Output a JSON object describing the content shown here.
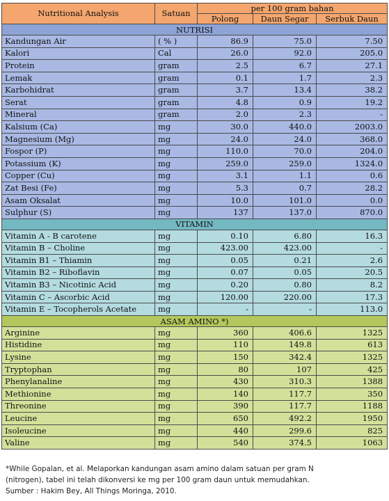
{
  "header": {
    "col_analysis": "Nutritional Analysis",
    "col_unit": "Satuan",
    "group": "per 100 gram bahan",
    "col_a": "Polong",
    "col_b": "Daun Segar",
    "col_c": "Serbuk Daun"
  },
  "sections": {
    "nutrisi": {
      "title": "NUTRISI",
      "rows": [
        [
          "Kandungan Air",
          "( % )",
          "86.9",
          "75.0",
          "7.50"
        ],
        [
          "Kalori",
          "Cal",
          "26.0",
          "92.0",
          "205.0"
        ],
        [
          "Protein",
          "gram",
          "2.5",
          "6.7",
          "27.1"
        ],
        [
          "Lemak",
          "gram",
          "0.1",
          "1.7",
          "2.3"
        ],
        [
          "Karbohidrat",
          "gram",
          "3.7",
          "13.4",
          "38.2"
        ],
        [
          "Serat",
          "gram",
          "4.8",
          "0.9",
          "19.2"
        ],
        [
          "Mineral",
          "gram",
          "2.0",
          "2.3",
          "-"
        ],
        [
          "Kalsium (Ca)",
          "mg",
          "30.0",
          "440.0",
          "2003.0"
        ],
        [
          "Magnesium (Mg)",
          "mg",
          "24.0",
          "24.0",
          "368.0"
        ],
        [
          "Fospor (P)",
          "mg",
          "110.0",
          "70.0",
          "204.0"
        ],
        [
          "Potassium (K)",
          "mg",
          "259.0",
          "259.0",
          "1324.0"
        ],
        [
          "Copper (Cu)",
          "mg",
          "3.1",
          "1.1",
          "0.6"
        ],
        [
          "Zat Besi (Fe)",
          "mg",
          "5.3",
          "0.7",
          "28.2"
        ],
        [
          "Asam Oksalat",
          "mg",
          "10.0",
          "101.0",
          "0.0"
        ],
        [
          "Sulphur (S)",
          "mg",
          "137",
          "137.0",
          "870.0"
        ]
      ]
    },
    "vitamin": {
      "title": "VITAMIN",
      "rows": [
        [
          "Vitamin A - B carotene",
          "mg",
          "0.10",
          "6.80",
          "16.3"
        ],
        [
          "Vitamin B – Choline",
          "mg",
          "423.00",
          "423.00",
          "-"
        ],
        [
          "Vitamin B1 – Thiamin",
          "mg",
          "0.05",
          "0.21",
          "2.6"
        ],
        [
          "Vitamin B2 – Riboflavin",
          "mg",
          "0.07",
          "0.05",
          "20.5"
        ],
        [
          "Vitamin B3 – Nicotinic Acid",
          "mg",
          "0.20",
          "0.80",
          "8.2"
        ],
        [
          "Vitamin C – Ascorbic Acid",
          "mg",
          "120.00",
          "220.00",
          "17.3"
        ],
        [
          "Vitamin E – Tocopherols Acetate",
          "mg",
          "-",
          "-",
          "113.0"
        ]
      ]
    },
    "amino": {
      "title": "ASAM AMINO *)",
      "rows": [
        [
          "Arginine",
          "mg",
          "360",
          "406.6",
          "1325"
        ],
        [
          "Histidine",
          "mg",
          "110",
          "149.8",
          "613"
        ],
        [
          "Lysine",
          "mg",
          "150",
          "342.4",
          "1325"
        ],
        [
          "Tryptophan",
          "mg",
          "80",
          "107",
          "425"
        ],
        [
          "Phenylanaline",
          "mg",
          "430",
          "310.3",
          "1388"
        ],
        [
          "Methionine",
          "mg",
          "140",
          "117.7",
          "350"
        ],
        [
          "Threonine",
          "mg",
          "390",
          "117.7",
          "1188"
        ],
        [
          "Leucine",
          "mg",
          "650",
          "492.2",
          "1950"
        ],
        [
          "Isoleucine",
          "mg",
          "440",
          "299.6",
          "825"
        ],
        [
          "Valine",
          "mg",
          "540",
          "374.5",
          "1063"
        ]
      ]
    }
  },
  "footnote": {
    "line1": "*While Gopalan, et al. Melaporkan kandungan asam amino dalam satuan per gram N",
    "line2": "(nitrogen), tabel ini telah dikonversi  ke mg per 100 gram daun untuk memudahkan.",
    "line3": "Sumber : Hakim Bey, All Things Moringa, 2010."
  }
}
